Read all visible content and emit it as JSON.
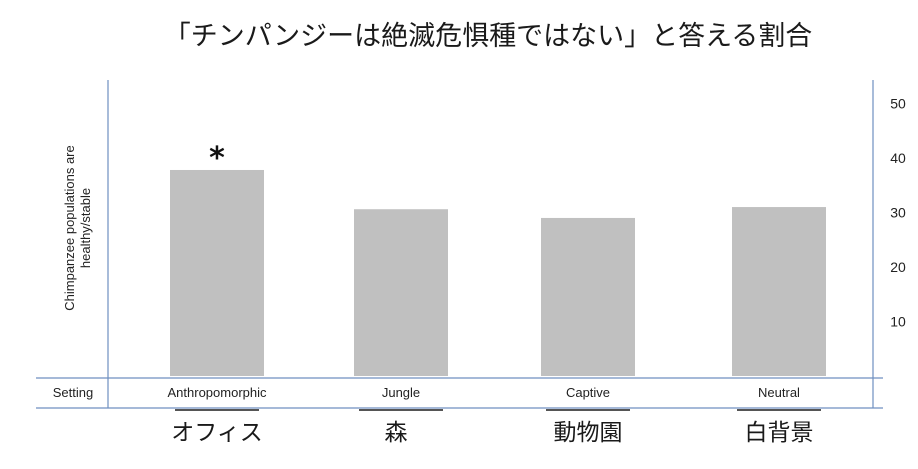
{
  "chart_data": {
    "type": "bar",
    "title": "「チンパンジーは絶滅危惧種ではない」と答える割合",
    "ylabel_lines": [
      "Chimpanzee populations are",
      "healthy/stable"
    ],
    "row_label": "Setting",
    "categories": [
      "Anthropomorphic",
      "Jungle",
      "Captive",
      "Neutral"
    ],
    "categories_jp": [
      "オフィス",
      "森",
      "動物園",
      "白背景"
    ],
    "values": [
      37.8,
      30.6,
      29.0,
      31.0
    ],
    "significance_marker": "*",
    "significant_category": "Anthropomorphic",
    "y_ticks": [
      "10",
      "20",
      "30",
      "40",
      "50"
    ],
    "ylim": [
      0,
      50
    ],
    "axis_side": "right",
    "grid": false,
    "bar_color": "#c0c0c0",
    "axis_color": "#6f8fc0"
  }
}
